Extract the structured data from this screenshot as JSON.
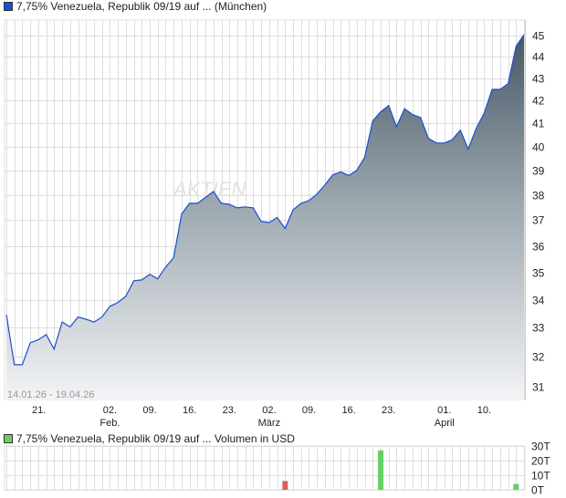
{
  "price_chart": {
    "title": "7,75% Venezuela, Republik 09/19 auf ... (München)",
    "series_color": "#1a4fd0",
    "date_range_label": "14.01.26 - 19.04.26",
    "watermark": "AKTIEN"
  },
  "volume_chart": {
    "title": "7,75% Venezuela, Republik 09/19 auf ... Volumen in USD",
    "series_color": "#66d066"
  },
  "chart_data": [
    {
      "type": "area",
      "y_scale": "log",
      "ylim": [
        30.5,
        45.3
      ],
      "y_ticks": [
        "31",
        "32",
        "33",
        "34",
        "35",
        "36",
        "37",
        "38",
        "39",
        "40",
        "41",
        "42",
        "43",
        "44",
        "45"
      ],
      "x_ticks": [
        {
          "date": "2026-01-21",
          "label": "21.",
          "month": ""
        },
        {
          "date": "2026-02-02",
          "label": "02.",
          "month": "Feb."
        },
        {
          "date": "2026-02-09",
          "label": "09.",
          "month": ""
        },
        {
          "date": "2026-02-16",
          "label": "16.",
          "month": ""
        },
        {
          "date": "2026-02-23",
          "label": "23.",
          "month": ""
        },
        {
          "date": "2026-03-02",
          "label": "02.",
          "month": "März"
        },
        {
          "date": "2026-03-09",
          "label": "09.",
          "month": ""
        },
        {
          "date": "2026-03-16",
          "label": "16.",
          "month": ""
        },
        {
          "date": "2026-03-23",
          "label": "23.",
          "month": ""
        },
        {
          "date": "2026-04-01",
          "label": "01.",
          "month": "April"
        },
        {
          "date": "2026-04-10",
          "label": "10.",
          "month": ""
        }
      ],
      "grid": true,
      "dates": [
        "2026-01-14",
        "2026-01-15",
        "2026-01-16",
        "2026-01-19",
        "2026-01-20",
        "2026-01-21",
        "2026-01-22",
        "2026-01-23",
        "2026-01-26",
        "2026-01-27",
        "2026-01-28",
        "2026-01-29",
        "2026-01-30",
        "2026-02-02",
        "2026-02-03",
        "2026-02-04",
        "2026-02-05",
        "2026-02-06",
        "2026-02-09",
        "2026-02-10",
        "2026-02-11",
        "2026-02-12",
        "2026-02-13",
        "2026-02-16",
        "2026-02-17",
        "2026-02-18",
        "2026-02-19",
        "2026-02-20",
        "2026-02-23",
        "2026-02-24",
        "2026-02-25",
        "2026-02-26",
        "2026-02-27",
        "2026-03-02",
        "2026-03-03",
        "2026-03-04",
        "2026-03-05",
        "2026-03-06",
        "2026-03-09",
        "2026-03-10",
        "2026-03-11",
        "2026-03-12",
        "2026-03-13",
        "2026-03-16",
        "2026-03-17",
        "2026-03-18",
        "2026-03-19",
        "2026-03-20",
        "2026-03-23",
        "2026-03-24",
        "2026-03-25",
        "2026-03-26",
        "2026-03-27",
        "2026-03-30",
        "2026-03-31",
        "2026-04-01",
        "2026-04-02",
        "2026-04-07",
        "2026-04-08",
        "2026-04-09",
        "2026-04-10",
        "2026-04-13",
        "2026-04-14",
        "2026-04-15",
        "2026-04-16",
        "2026-04-17"
      ],
      "values": [
        33.46,
        31.73,
        31.73,
        32.48,
        32.58,
        32.76,
        32.26,
        33.2,
        33.03,
        33.38,
        33.3,
        33.2,
        33.38,
        33.76,
        33.9,
        34.12,
        34.69,
        34.72,
        34.93,
        34.76,
        35.2,
        35.55,
        37.23,
        37.66,
        37.66,
        37.9,
        38.14,
        37.66,
        37.62,
        37.48,
        37.52,
        37.48,
        36.94,
        36.9,
        37.1,
        36.67,
        37.4,
        37.66,
        37.77,
        38.03,
        38.4,
        38.82,
        38.94,
        38.79,
        39.0,
        39.55,
        41.1,
        41.5,
        41.78,
        40.85,
        41.64,
        41.38,
        41.25,
        40.35,
        40.15,
        40.15,
        40.3,
        40.7,
        39.9,
        40.78,
        41.45,
        42.5,
        42.5,
        42.76,
        44.49,
        45.05
      ]
    },
    {
      "type": "bar",
      "ylim": [
        0,
        30
      ],
      "y_ticks": [
        "0T",
        "10T",
        "20T",
        "30T"
      ],
      "bars": [
        {
          "date": "2026-03-04",
          "value": 6,
          "color": "#d96060"
        },
        {
          "date": "2026-03-20",
          "value": 27,
          "color": "#66d066"
        },
        {
          "date": "2026-04-16",
          "value": 4,
          "color": "#66d066"
        }
      ]
    }
  ]
}
